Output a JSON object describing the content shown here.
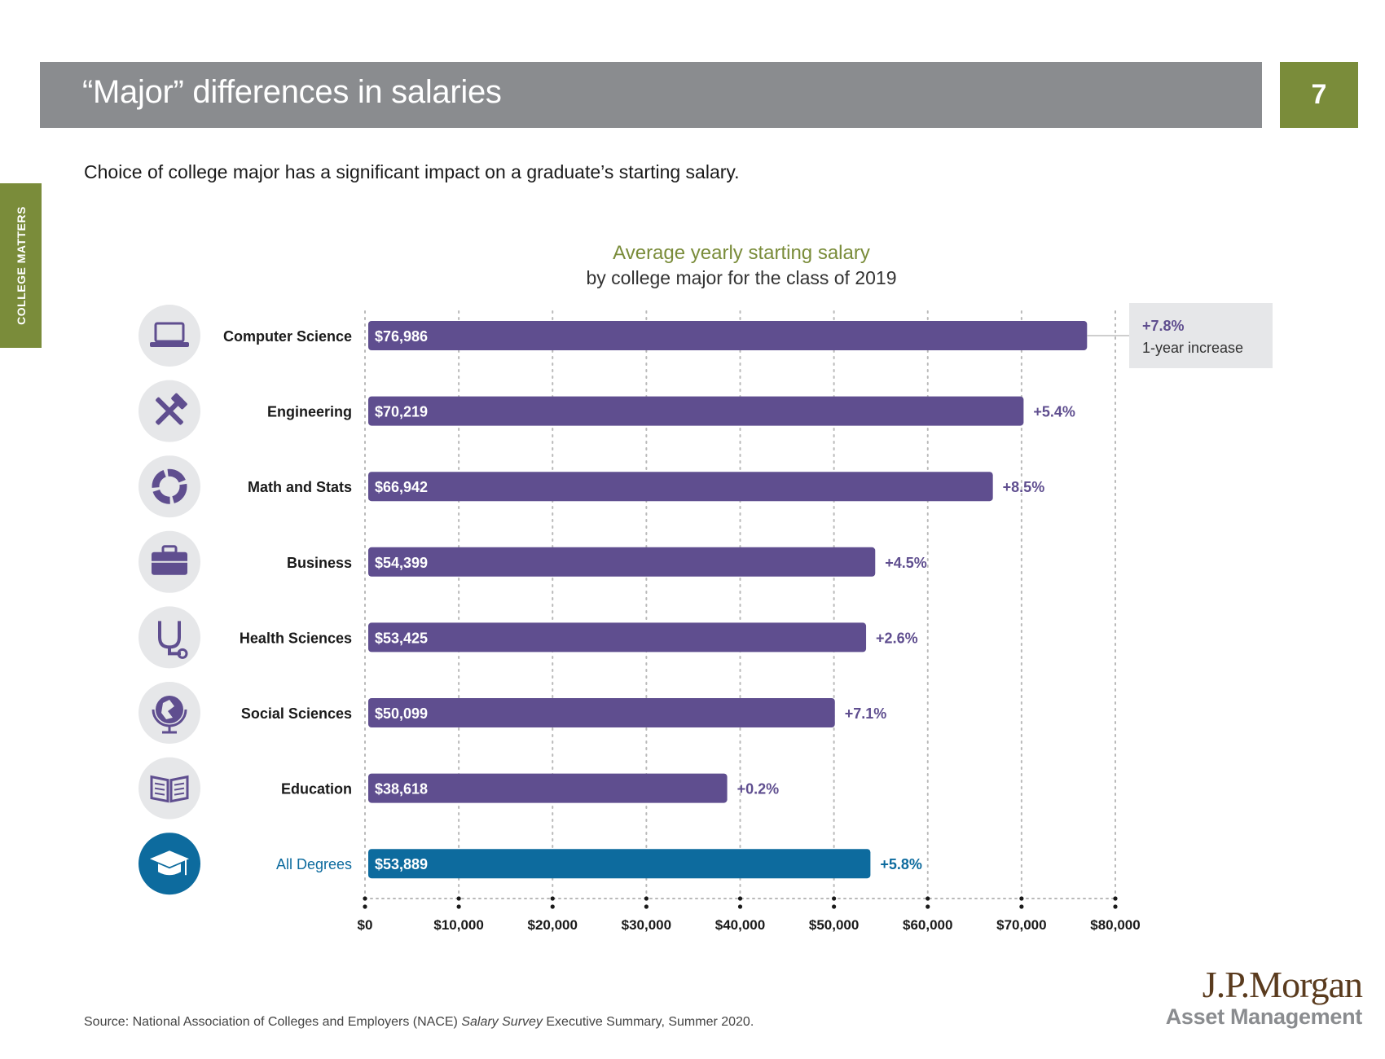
{
  "header": {
    "title": "“Major” differences in salaries",
    "page_number": "7",
    "side_tab": "COLLEGE MATTERS"
  },
  "subtitle": "Choice of college major has a significant impact on a graduate’s starting salary.",
  "colors": {
    "bar": "#5f4e8f",
    "highlight_bar": "#0d6b9e",
    "accent_green": "#7a8c3a",
    "header_gray": "#8a8c8f",
    "icon_circle": "#e6e7e9",
    "icon_gray": "#5f4e8f"
  },
  "chart_data": {
    "type": "bar",
    "orientation": "horizontal",
    "title": "Average yearly starting salary",
    "subtitle": "by college major for the class of 2019",
    "categories": [
      "Computer Science",
      "Engineering",
      "Math and Stats",
      "Business",
      "Health Sciences",
      "Social Sciences",
      "Education",
      "All Degrees"
    ],
    "values": [
      76986,
      70219,
      66942,
      54399,
      53425,
      50099,
      38618,
      53889
    ],
    "value_labels": [
      "$76,986",
      "$70,219",
      "$66,942",
      "$54,399",
      "$53,425",
      "$50,099",
      "$38,618",
      "$53,889"
    ],
    "change_labels": [
      "+7.8%",
      "+5.4%",
      "+8.5%",
      "+4.5%",
      "+2.6%",
      "+7.1%",
      "+0.2%",
      "+5.8%"
    ],
    "icons": [
      "laptop-icon",
      "tools-icon",
      "chart-donut-icon",
      "briefcase-icon",
      "stethoscope-icon",
      "globe-icon",
      "book-icon",
      "graduation-cap-icon"
    ],
    "highlight": "All Degrees",
    "callout": {
      "value": "+7.8%",
      "text": "1-year increase"
    },
    "xlim": [
      0,
      80000
    ],
    "xticks": [
      0,
      10000,
      20000,
      30000,
      40000,
      50000,
      60000,
      70000,
      80000
    ],
    "xtick_labels": [
      "$0",
      "$10,000",
      "$20,000",
      "$30,000",
      "$40,000",
      "$50,000",
      "$60,000",
      "$70,000",
      "$80,000"
    ],
    "grid": true
  },
  "source": {
    "prefix": "Source: National Association of Colleges and Employers (NACE) ",
    "italic": "Salary Survey",
    "suffix": " Executive Summary, Summer 2020."
  },
  "logo": {
    "line1": "J.P.Morgan",
    "line2": "Asset Management"
  }
}
